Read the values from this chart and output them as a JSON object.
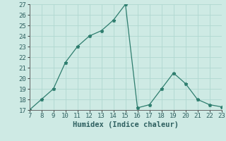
{
  "x": [
    7,
    8,
    9,
    10,
    11,
    12,
    13,
    14,
    15,
    16,
    17,
    18,
    19,
    20,
    21,
    22,
    23
  ],
  "y": [
    17,
    18,
    19,
    21.5,
    23,
    24,
    24.5,
    25.5,
    27,
    17.2,
    17.5,
    19,
    20.5,
    19.5,
    18,
    17.5,
    17.3
  ],
  "xlim": [
    7,
    23
  ],
  "ylim": [
    17,
    27
  ],
  "xticks": [
    7,
    8,
    9,
    10,
    11,
    12,
    13,
    14,
    15,
    16,
    17,
    18,
    19,
    20,
    21,
    22,
    23
  ],
  "yticks": [
    17,
    18,
    19,
    20,
    21,
    22,
    23,
    24,
    25,
    26,
    27
  ],
  "xlabel": "Humidex (Indice chaleur)",
  "line_color": "#2e7d6e",
  "marker": "*",
  "bg_color": "#ceeae4",
  "grid_color": "#b0d8d0",
  "tick_fontsize": 6.5,
  "label_fontsize": 7.5
}
